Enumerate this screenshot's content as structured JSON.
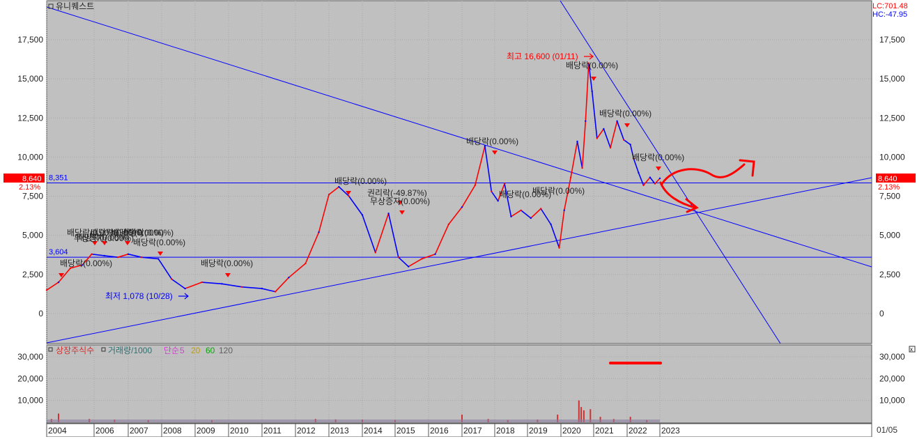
{
  "window": {
    "stock_name": "유니퀘스트",
    "lc_readout": "LC:701.48",
    "hc_readout": "HC:-47.95",
    "last_date_label": "01/05"
  },
  "price_panel": {
    "current_price_tag": "8,640",
    "current_change_tag": "2.13%",
    "hline_labels": [
      "8,351",
      "3,604"
    ],
    "high_marker": "최고 16,600 (01/11)",
    "low_marker": "최저 1,078 (10/28)",
    "event_labels": [
      "배당락(0.00%)",
      "배당락(0.00%)",
      "배당락(0.00%)",
      "배당락(0.00%)",
      "배당락(0.00%)",
      "권리락(-49.87%)",
      "무상증자(0.00%)",
      "배당락(0.00%)",
      "배당락(0.00%)",
      "배당락(0.00%)",
      "배당락(0.00%)",
      "배당락(0.00%)",
      "배당락(0.00%)",
      "배당락(0.00%)",
      "무상증자(0.00%)",
      "배당락(0.00%)",
      "배당락(0.00%)",
      "배당락(0.00%)"
    ]
  },
  "volume_panel": {
    "legend": [
      {
        "text": "상장주식수",
        "color": "#d03030"
      },
      {
        "text": "거래량/1000",
        "color": "#307070"
      },
      {
        "text": "단순",
        "color": "#d040d0"
      },
      {
        "text": "5",
        "color": "#d040d0"
      },
      {
        "text": "20",
        "color": "#c0a000"
      },
      {
        "text": "60",
        "color": "#10a010"
      },
      {
        "text": "120",
        "color": "#606060"
      }
    ]
  },
  "colors": {
    "background": "#c0c0c0",
    "price_up": "#ff0000",
    "price_down": "#0000ff",
    "trendline": "#0000ff",
    "annotation": "#ff0000"
  },
  "chart_data": [
    {
      "type": "line",
      "panel": "price",
      "x_ticks": [
        "2004",
        "2006",
        "2007",
        "2008",
        "2009",
        "2010",
        "2011",
        "2012",
        "2013",
        "2014",
        "2015",
        "2016",
        "2017",
        "2018",
        "2019",
        "2020",
        "2021",
        "2022",
        "2023"
      ],
      "y_ticks": [
        "17,500",
        "15,000",
        "12,500",
        "10,000",
        "7,500",
        "5,000",
        "2,500",
        "0"
      ],
      "ylim": [
        -1900,
        20000
      ],
      "series": [
        {
          "x": [
            2004.0,
            2004.5,
            2005.0,
            2005.5,
            2005.9,
            2006.3,
            2006.7,
            2007.0,
            2007.4,
            2007.9,
            2008.3,
            2008.7,
            2009.2,
            2009.8,
            2010.4,
            2011.0,
            2011.4,
            2011.8,
            2012.3,
            2012.7,
            2013.0,
            2013.3,
            2013.6,
            2014.0,
            2014.4,
            2014.8,
            2015.1,
            2015.4,
            2015.8,
            2016.2,
            2016.6,
            2017.0,
            2017.4,
            2017.7,
            2017.9,
            2018.1,
            2018.3,
            2018.5,
            2018.8,
            2019.1,
            2019.4,
            2019.7,
            2019.95,
            2020.1,
            2020.3,
            2020.5,
            2020.65,
            2020.75,
            2020.85,
            2020.95,
            2021.1,
            2021.3,
            2021.5,
            2021.7,
            2021.9,
            2022.1,
            2022.2,
            2022.35,
            2022.5,
            2022.7,
            2022.85,
            2023.0
          ],
          "values": [
            1500,
            2000,
            2900,
            3100,
            3800,
            3700,
            3600,
            3800,
            3600,
            3500,
            2200,
            1600,
            2000,
            1900,
            1700,
            1600,
            1400,
            2300,
            3200,
            5200,
            7600,
            8100,
            7500,
            6300,
            3900,
            6400,
            3600,
            3000,
            3500,
            3800,
            5700,
            6800,
            8200,
            10700,
            7800,
            7200,
            8300,
            6200,
            6600,
            6100,
            6700,
            5700,
            4200,
            6600,
            8700,
            11000,
            9300,
            12300,
            16000,
            14200,
            11200,
            11800,
            10600,
            12300,
            11100,
            10800,
            9900,
            9000,
            8200,
            8700,
            8300,
            8640
          ]
        }
      ],
      "extremes": {
        "high": 16600,
        "low": 1078
      },
      "hlines": [
        8351,
        3604
      ]
    },
    {
      "type": "bar",
      "panel": "volume",
      "y_ticks": [
        "30,000",
        "20,000",
        "10,000"
      ],
      "ylim": [
        0,
        35000
      ],
      "series": [
        {
          "name": "거래량/1000",
          "x": [
            2004.2,
            2004.5,
            2005.8,
            2006.6,
            2007.6,
            2009.5,
            2012.6,
            2013.2,
            2014.0,
            2015.0,
            2017.0,
            2017.8,
            2018.4,
            2019.3,
            2019.9,
            2020.55,
            2020.62,
            2020.7,
            2020.9,
            2021.2,
            2021.6,
            2022.1,
            2022.6
          ],
          "values": [
            1500,
            4000,
            1500,
            1200,
            1000,
            900,
            1500,
            1300,
            1200,
            1000,
            3500,
            1500,
            1000,
            1200,
            3500,
            10000,
            7000,
            5500,
            6000,
            2500,
            1500,
            2500,
            1000
          ]
        }
      ]
    }
  ]
}
